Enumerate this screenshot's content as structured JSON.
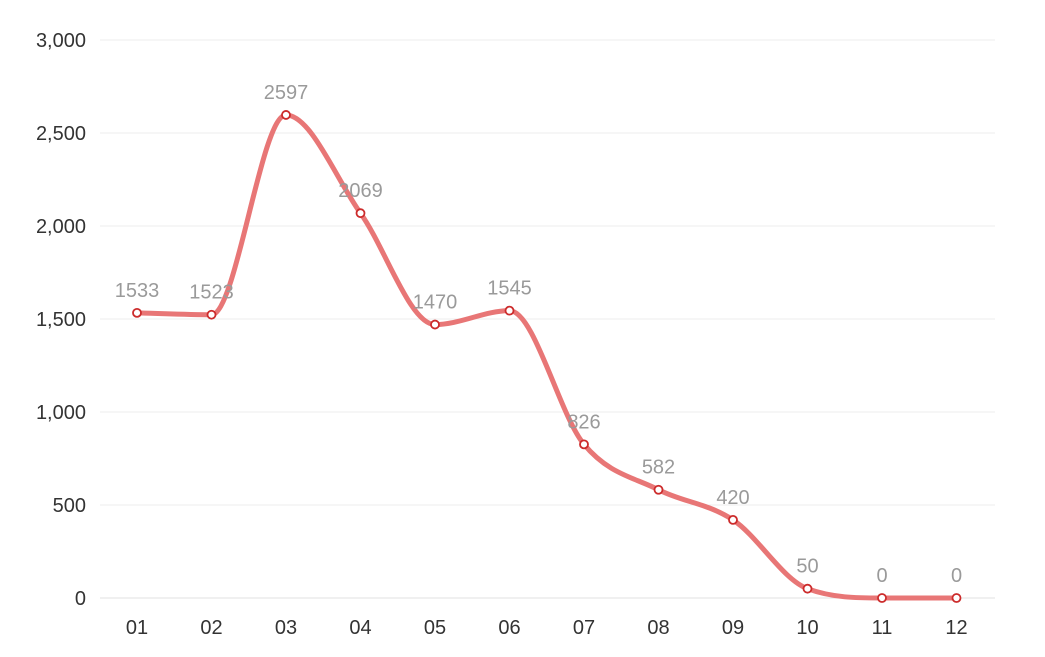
{
  "chart_data": {
    "type": "line",
    "title": "",
    "xlabel": "",
    "ylabel": "",
    "categories": [
      "01",
      "02",
      "03",
      "04",
      "05",
      "06",
      "07",
      "08",
      "09",
      "10",
      "11",
      "12"
    ],
    "series": [
      {
        "values": [
          1533,
          1523,
          2597,
          2069,
          1470,
          1545,
          826,
          582,
          420,
          50,
          0,
          0
        ]
      }
    ],
    "data_labels": [
      "1533",
      "1523",
      "2597",
      "2069",
      "1470",
      "1545",
      "826",
      "582",
      "420",
      "50",
      "0",
      "0"
    ],
    "y_ticks": [
      0,
      500,
      1000,
      1500,
      2000,
      2500,
      3000
    ],
    "y_tick_labels": [
      "0",
      "500",
      "1,000",
      "1,500",
      "2,000",
      "2,500",
      "3,000"
    ],
    "ylim": [
      0,
      3000
    ],
    "grid": true,
    "smooth": true,
    "colors": {
      "line": "#e87676",
      "marker_stroke": "#cc2b2b",
      "marker_fill": "#ffffff",
      "grid": "#ececec",
      "axis": "#e0e0e0",
      "tick_text": "#333333",
      "label_text": "#9a9a9a"
    }
  }
}
